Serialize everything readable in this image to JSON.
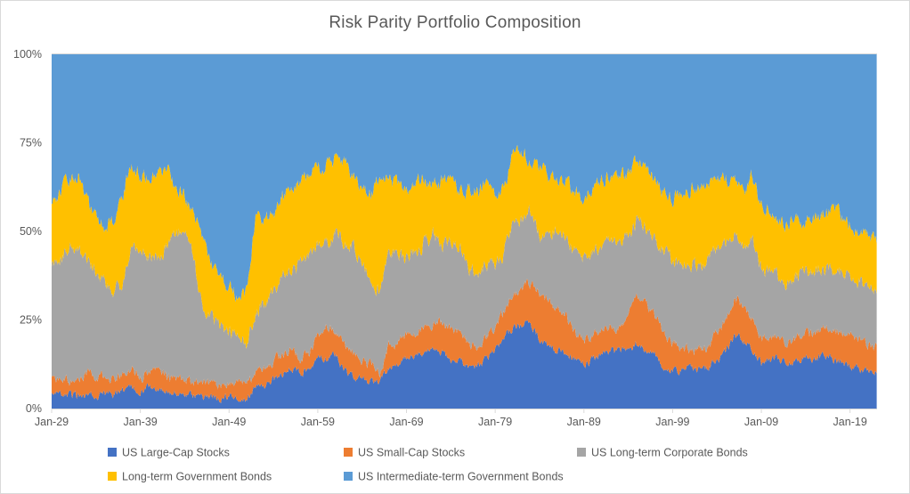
{
  "chart_data": {
    "type": "area",
    "stacked": true,
    "normalized": true,
    "title": "Risk Parity Portfolio Composition",
    "xlabel": "",
    "ylabel": "",
    "ylim": [
      0,
      100
    ],
    "grid": false,
    "legend_position": "bottom",
    "y_tick_labels": [
      "0%",
      "25%",
      "50%",
      "75%",
      "100%"
    ],
    "y_tick_values": [
      0,
      25,
      50,
      75,
      100
    ],
    "x_tick_labels": [
      "Jan-29",
      "Jan-39",
      "Jan-49",
      "Jan-59",
      "Jan-69",
      "Jan-79",
      "Jan-89",
      "Jan-99",
      "Jan-09",
      "Jan-19"
    ],
    "x_tick_years": [
      1929,
      1939,
      1949,
      1959,
      1969,
      1979,
      1989,
      1999,
      2009,
      2019
    ],
    "x_years": [
      1929,
      1930,
      1931,
      1932,
      1933,
      1934,
      1935,
      1936,
      1937,
      1938,
      1939,
      1940,
      1941,
      1942,
      1943,
      1944,
      1945,
      1946,
      1947,
      1948,
      1949,
      1950,
      1951,
      1952,
      1953,
      1954,
      1955,
      1956,
      1957,
      1958,
      1959,
      1960,
      1961,
      1962,
      1963,
      1964,
      1965,
      1966,
      1967,
      1968,
      1969,
      1970,
      1971,
      1972,
      1973,
      1974,
      1975,
      1976,
      1977,
      1978,
      1979,
      1980,
      1981,
      1982,
      1983,
      1984,
      1985,
      1986,
      1987,
      1988,
      1989,
      1990,
      1991,
      1992,
      1993,
      1994,
      1995,
      1996,
      1997,
      1998,
      1999,
      2000,
      2001,
      2002,
      2003,
      2004,
      2005,
      2006,
      2007,
      2008,
      2009,
      2010,
      2011,
      2012,
      2013,
      2014,
      2015,
      2016,
      2017,
      2018,
      2019,
      2020,
      2021,
      2022
    ],
    "series": [
      {
        "name": "US Large-Cap Stocks",
        "color": "#4472C4",
        "values": [
          5,
          4,
          4,
          3.5,
          4,
          4,
          4,
          4,
          5,
          6,
          5,
          6,
          6,
          5,
          4,
          4,
          3.5,
          3,
          3,
          3,
          3,
          3,
          3,
          6.5,
          6.5,
          8.5,
          10,
          11,
          10,
          11.5,
          14,
          14.5,
          15,
          10.5,
          9,
          8.5,
          7.5,
          7.5,
          11.5,
          12.5,
          14,
          15,
          16,
          16.5,
          16,
          14,
          13.5,
          11.5,
          12,
          14,
          16.5,
          20,
          22.5,
          23.5,
          24,
          19,
          17.5,
          16.5,
          15,
          13.5,
          12.5,
          14,
          15,
          16.5,
          16,
          16.5,
          18.5,
          16.5,
          15,
          11.5,
          11,
          10.5,
          11.5,
          11,
          11.5,
          14,
          16,
          21,
          19,
          16.5,
          12.5,
          13.5,
          14,
          12.5,
          13.5,
          15,
          14,
          15,
          14,
          13,
          11.5,
          11,
          10.5,
          10
        ]
      },
      {
        "name": "US Small-Cap Stocks",
        "color": "#ED7D31",
        "values": [
          4,
          4.5,
          4,
          4,
          6,
          5,
          5,
          4.5,
          4.5,
          5,
          4,
          4,
          4.5,
          4,
          4.5,
          4,
          4,
          4,
          4,
          4,
          4.5,
          4.5,
          4,
          3.5,
          5,
          5,
          5,
          5.5,
          4,
          3.5,
          7,
          9,
          6.5,
          8,
          7,
          5.5,
          5,
          2.5,
          6,
          6.5,
          7,
          6.5,
          7.5,
          7.5,
          8,
          8.5,
          8,
          7,
          5.5,
          6,
          7,
          7.5,
          9,
          11.5,
          11,
          13.5,
          13,
          12,
          11,
          8,
          6.5,
          7,
          6.5,
          7,
          6.5,
          9.5,
          13,
          13.5,
          11,
          9.5,
          7.5,
          7,
          5,
          5,
          6,
          7.5,
          9,
          10.5,
          9.5,
          9.5,
          7.5,
          6.5,
          7,
          6,
          6.5,
          6,
          7.5,
          8.5,
          8.5,
          8.5,
          9,
          8.5,
          7.5,
          7
        ]
      },
      {
        "name": "US Long-term Corporate Bonds",
        "color": "#A5A5A5",
        "values": [
          31,
          34,
          38,
          36.5,
          32.5,
          30,
          27,
          24.5,
          25.5,
          34,
          37.5,
          33,
          33,
          37,
          42.5,
          41,
          35,
          21.5,
          19,
          16.5,
          14,
          13.5,
          11.5,
          17.5,
          17.5,
          20,
          21.5,
          23,
          27,
          27.5,
          25.5,
          24,
          27.5,
          28,
          30,
          28.5,
          25,
          22.5,
          25,
          24.5,
          21.5,
          22.5,
          23,
          25,
          22,
          24,
          24.5,
          20.5,
          21,
          20,
          17.5,
          16.5,
          20.5,
          18.5,
          20.5,
          16.5,
          19,
          22,
          21.5,
          22.5,
          23.5,
          22.5,
          24.5,
          23,
          25,
          22.5,
          22,
          21,
          22.5,
          23,
          23.5,
          24,
          24.5,
          24,
          25,
          23.5,
          21.5,
          17,
          17.5,
          21.5,
          19,
          18.5,
          15.5,
          16.5,
          17.5,
          17.5,
          17.5,
          16.5,
          17.5,
          17,
          16.5,
          16.5,
          16,
          16
        ]
      },
      {
        "name": "Long-term Government Bonds",
        "color": "#FFC000",
        "values": [
          18,
          18.5,
          18.5,
          21.5,
          17,
          14.5,
          15,
          20,
          26,
          23.5,
          19.5,
          22,
          22,
          22,
          10,
          11.5,
          12,
          19,
          15,
          14,
          13.5,
          11,
          14.5,
          25.5,
          25,
          21,
          24,
          22.5,
          22.5,
          23,
          21.5,
          21,
          21.5,
          23,
          19.5,
          19.5,
          23,
          33.5,
          22,
          19.5,
          18.5,
          20.5,
          19,
          14.5,
          18.5,
          19.5,
          15,
          23,
          22.5,
          23.5,
          20,
          18,
          20,
          18.5,
          15,
          19,
          16,
          14,
          16,
          17,
          17,
          19.5,
          18.5,
          19.5,
          18,
          17,
          16,
          17,
          16,
          16.5,
          17.5,
          19.5,
          21,
          23,
          21,
          19.5,
          19,
          16,
          14.5,
          18.5,
          18,
          17,
          16.5,
          17,
          16,
          14.5,
          15.5,
          15.5,
          16.5,
          15.5,
          15,
          14.5,
          14.5,
          15
        ]
      },
      {
        "name": "US Intermediate-term Government Bonds",
        "color": "#5B9BD5",
        "values": [
          42,
          39,
          35.5,
          34.5,
          40.5,
          46.5,
          49,
          47,
          39,
          31.5,
          34,
          35,
          34.5,
          32,
          39,
          39.5,
          45.5,
          52.5,
          59,
          62.5,
          65,
          68,
          67,
          47,
          46,
          45.5,
          39.5,
          38,
          36.5,
          34.5,
          32,
          31.5,
          29.5,
          30.5,
          34.5,
          38,
          39.5,
          34,
          35.5,
          37,
          39,
          35.5,
          34.5,
          36.5,
          35.5,
          34,
          39,
          38,
          39,
          36.5,
          39,
          38,
          28,
          28,
          29.5,
          32,
          34.5,
          35.5,
          36.5,
          39,
          40.5,
          37,
          35.5,
          34,
          34.5,
          34.5,
          30.5,
          32,
          35.5,
          39.5,
          40.5,
          39,
          38,
          37,
          36.5,
          35.5,
          34.5,
          35.5,
          39.5,
          34,
          43,
          44.5,
          47,
          48,
          46.5,
          47,
          45.5,
          44.5,
          43.5,
          46,
          48,
          49.5,
          51.5,
          52
        ]
      }
    ]
  },
  "colors": {
    "text": "#595959",
    "grid": "#D9D9D9",
    "border": "#D9D9D9",
    "background": "#FFFFFF"
  }
}
